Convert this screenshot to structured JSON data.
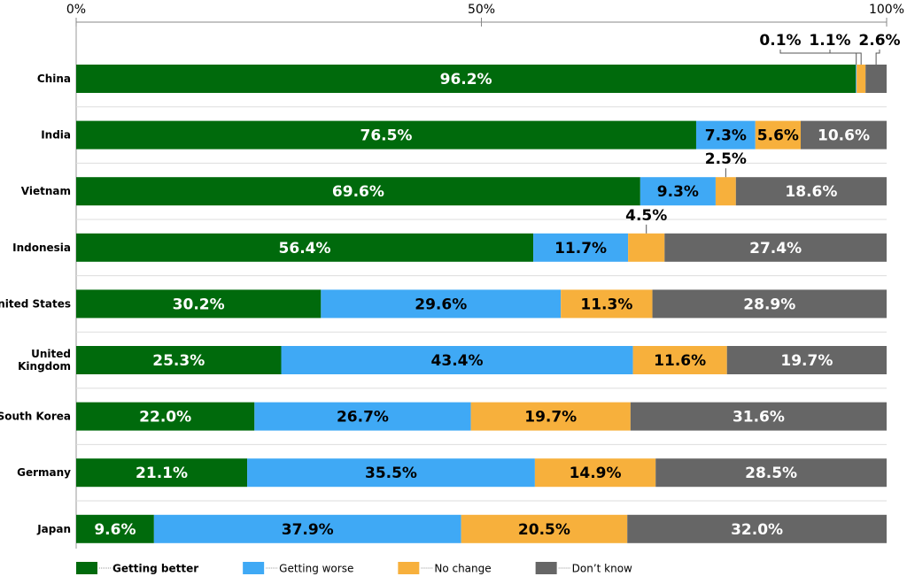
{
  "chart_data": {
    "type": "stacked-bar-horizontal",
    "categories": [
      "China",
      "India",
      "Vietnam",
      "Indonesia",
      "United States",
      "United Kingdom",
      "South Korea",
      "Germany",
      "Japan"
    ],
    "xlim": [
      0,
      100
    ],
    "xticks": [
      {
        "value": 0,
        "label": "0%"
      },
      {
        "value": 50,
        "label": "50%"
      },
      {
        "value": 100,
        "label": "100%"
      }
    ],
    "series": [
      {
        "name": "Getting better",
        "color": "#006a0c",
        "values": [
          96.2,
          76.5,
          69.6,
          56.4,
          30.2,
          25.3,
          22.0,
          21.1,
          9.6
        ],
        "value_labels": [
          "96.2%",
          "76.5%",
          "69.6%",
          "56.4%",
          "30.2%",
          "25.3%",
          "22.0%",
          "21.1%",
          "9.6%"
        ]
      },
      {
        "name": "Getting worse",
        "color": "#3fa9f5",
        "values": [
          0.1,
          7.3,
          9.3,
          11.7,
          29.6,
          43.4,
          26.7,
          35.5,
          37.9
        ],
        "value_labels": [
          "0.1%",
          "7.3%",
          "9.3%",
          "11.7%",
          "29.6%",
          "43.4%",
          "26.7%",
          "35.5%",
          "37.9%"
        ]
      },
      {
        "name": "No change",
        "color": "#f7b03c",
        "values": [
          1.1,
          5.6,
          2.5,
          4.5,
          11.3,
          11.6,
          19.7,
          14.9,
          20.5
        ],
        "value_labels": [
          "1.1%",
          "5.6%",
          "2.5%",
          "4.5%",
          "11.3%",
          "11.6%",
          "19.7%",
          "14.9%",
          "20.5%"
        ]
      },
      {
        "name": "Don’t know",
        "color": "#666666",
        "values": [
          2.6,
          10.6,
          18.6,
          27.4,
          28.9,
          19.7,
          31.6,
          28.5,
          32.0
        ],
        "value_labels": [
          "2.6%",
          "10.6%",
          "18.6%",
          "27.4%",
          "28.9%",
          "19.7%",
          "31.6%",
          "28.5%",
          "32.0%"
        ]
      }
    ]
  }
}
